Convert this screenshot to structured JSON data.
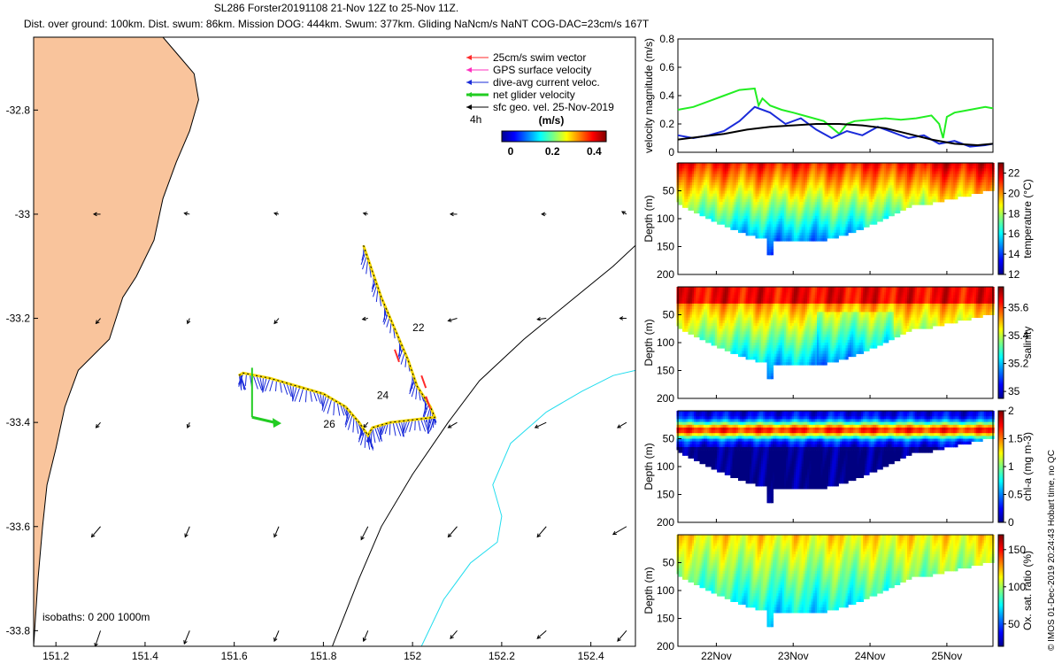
{
  "title_line1": "SL286 Forster20191108 21-Nov 12Z to 25-Nov 11Z.",
  "title_line2": "Dist. over ground: 100km. Dist. swum: 86km. Mission DOG: 444km. Swum: 377km. Gliding NaNcm/s NaNT COG-DAC=23cm/s 167T",
  "side_label": "© IMOS 01-Dec-2019 20:24:43 Hobart time, no QC",
  "colors": {
    "land": "#f9c49c",
    "sea": "#ffffff",
    "iso200": "#000000",
    "iso1000": "#22ddee",
    "track": "#f5d800",
    "dac": "#1a2bd9",
    "net": "#22cc22",
    "gps": "#ff2fbf",
    "swim": "#ff2a2a"
  },
  "map": {
    "xlim": [
      151.15,
      152.5
    ],
    "ylim": [
      -33.83,
      -32.66
    ],
    "xticks": [
      151.2,
      151.4,
      151.6,
      151.8,
      152,
      152.2,
      152.4
    ],
    "xtick_labels": [
      "151.2",
      "151.4",
      "151.6",
      "151.8",
      "152",
      "152.2",
      "152.4"
    ],
    "yticks": [
      -32.8,
      -33,
      -33.2,
      -33.4,
      -33.6,
      -33.8
    ],
    "ytick_labels": [
      "-32.8",
      "-33",
      "-33.2",
      "-33.4",
      "-33.6",
      "-33.8"
    ],
    "legend": [
      {
        "label": "25cm/s swim vector",
        "color": "#ff2a2a",
        "width": 1
      },
      {
        "label": "GPS surface velocity",
        "color": "#ff2fbf",
        "width": 1
      },
      {
        "label": "dive-avg current veloc.",
        "color": "#1a2bd9",
        "width": 1
      },
      {
        "label": "net glider velocity",
        "color": "#22cc22",
        "width": 3
      },
      {
        "label": "sfc geo. vel. 25-Nov-2019",
        "color": "#000000",
        "width": 1
      }
    ],
    "legend_time_label": "4h",
    "colorbar": {
      "title": "(m/s)",
      "range": [
        0,
        0.5
      ],
      "ticks": [
        0,
        0.2,
        0.4
      ],
      "tick_labels": [
        "0",
        "0.2",
        "0.4"
      ]
    },
    "isobaths_label": "isobaths: 0   200  1000m",
    "track_day_labels": [
      {
        "text": "22",
        "lon": 152.0,
        "lat": -33.225
      },
      {
        "text": "24",
        "lon": 151.92,
        "lat": -33.355
      },
      {
        "text": "26",
        "lon": 151.8,
        "lat": -33.41
      }
    ],
    "track": [
      [
        151.89,
        -33.06
      ],
      [
        151.91,
        -33.11
      ],
      [
        151.93,
        -33.16
      ],
      [
        151.96,
        -33.22
      ],
      [
        151.99,
        -33.28
      ],
      [
        152.01,
        -33.33
      ],
      [
        152.04,
        -33.37
      ],
      [
        152.05,
        -33.39
      ],
      [
        152.0,
        -33.395
      ],
      [
        151.95,
        -33.4
      ],
      [
        151.91,
        -33.41
      ],
      [
        151.9,
        -33.425
      ],
      [
        151.88,
        -33.4
      ],
      [
        151.85,
        -33.37
      ],
      [
        151.8,
        -33.345
      ],
      [
        151.74,
        -33.33
      ],
      [
        151.68,
        -33.315
      ],
      [
        151.62,
        -33.305
      ],
      [
        151.61,
        -33.31
      ]
    ],
    "net_velocity": {
      "lon0": 151.64,
      "lat0": -33.39,
      "lon1": 151.69,
      "lat1": -33.4
    },
    "geostrophic_velocity": [
      [
        151.3,
        -33.0,
        -0.015,
        0.0
      ],
      [
        151.5,
        -33.0,
        -0.012,
        0.002
      ],
      [
        151.7,
        -33.0,
        -0.01,
        0.002
      ],
      [
        151.9,
        -33.0,
        -0.01,
        0.002
      ],
      [
        152.1,
        -33.0,
        -0.015,
        0.0
      ],
      [
        152.3,
        -33.0,
        -0.01,
        0.0
      ],
      [
        152.48,
        -33.0,
        -0.01,
        0.005
      ],
      [
        151.3,
        -33.2,
        -0.01,
        -0.01
      ],
      [
        151.5,
        -33.2,
        -0.005,
        -0.01
      ],
      [
        151.7,
        -33.2,
        -0.01,
        -0.01
      ],
      [
        151.9,
        -33.2,
        -0.012,
        -0.002
      ],
      [
        152.1,
        -33.2,
        -0.02,
        -0.005
      ],
      [
        152.3,
        -33.2,
        -0.02,
        -0.002
      ],
      [
        152.48,
        -33.2,
        -0.015,
        0.0
      ],
      [
        151.3,
        -33.4,
        -0.01,
        -0.01
      ],
      [
        151.5,
        -33.4,
        -0.005,
        -0.01
      ],
      [
        151.7,
        -33.4,
        0.0,
        0.0
      ],
      [
        151.9,
        -33.4,
        -0.01,
        -0.01
      ],
      [
        152.1,
        -33.4,
        -0.02,
        -0.01
      ],
      [
        152.3,
        -33.4,
        -0.025,
        -0.01
      ],
      [
        152.48,
        -33.4,
        -0.02,
        -0.01
      ],
      [
        151.3,
        -33.6,
        -0.02,
        -0.02
      ],
      [
        151.5,
        -33.6,
        -0.01,
        -0.02
      ],
      [
        151.7,
        -33.6,
        -0.01,
        -0.02
      ],
      [
        151.9,
        -33.6,
        -0.015,
        -0.025
      ],
      [
        152.1,
        -33.6,
        -0.02,
        -0.02
      ],
      [
        152.3,
        -33.6,
        -0.02,
        -0.02
      ],
      [
        152.48,
        -33.6,
        -0.03,
        -0.015
      ],
      [
        151.3,
        -33.8,
        -0.012,
        -0.03
      ],
      [
        151.5,
        -33.8,
        -0.012,
        -0.025
      ],
      [
        151.7,
        -33.8,
        -0.01,
        -0.02
      ],
      [
        151.9,
        -33.8,
        -0.01,
        -0.02
      ],
      [
        152.1,
        -33.8,
        -0.015,
        -0.015
      ],
      [
        152.3,
        -33.8,
        -0.02,
        -0.015
      ],
      [
        152.48,
        -33.8,
        -0.02,
        -0.02
      ]
    ],
    "coast": [
      [
        151.15,
        -33.83
      ],
      [
        151.15,
        -32.66
      ],
      [
        151.44,
        -32.66
      ],
      [
        151.48,
        -32.7
      ],
      [
        151.51,
        -32.73
      ],
      [
        151.52,
        -32.78
      ],
      [
        151.5,
        -32.84
      ],
      [
        151.47,
        -32.9
      ],
      [
        151.44,
        -32.97
      ],
      [
        151.42,
        -33.05
      ],
      [
        151.38,
        -33.12
      ],
      [
        151.35,
        -33.16
      ],
      [
        151.32,
        -33.24
      ],
      [
        151.25,
        -33.3
      ],
      [
        151.22,
        -33.37
      ],
      [
        151.2,
        -33.45
      ],
      [
        151.18,
        -33.52
      ],
      [
        151.17,
        -33.6
      ],
      [
        151.16,
        -33.7
      ],
      [
        151.15,
        -33.83
      ]
    ],
    "iso200": [
      [
        151.82,
        -33.83
      ],
      [
        151.88,
        -33.7
      ],
      [
        151.93,
        -33.6
      ],
      [
        152.0,
        -33.5
      ],
      [
        152.08,
        -33.4
      ],
      [
        152.15,
        -33.32
      ],
      [
        152.25,
        -33.24
      ],
      [
        152.35,
        -33.17
      ],
      [
        152.45,
        -33.1
      ],
      [
        152.5,
        -33.06
      ]
    ],
    "iso1000": [
      [
        152.02,
        -33.83
      ],
      [
        152.07,
        -33.74
      ],
      [
        152.13,
        -33.67
      ],
      [
        152.19,
        -33.63
      ],
      [
        152.2,
        -33.58
      ],
      [
        152.18,
        -33.52
      ],
      [
        152.22,
        -33.44
      ],
      [
        152.3,
        -33.38
      ],
      [
        152.38,
        -33.34
      ],
      [
        152.45,
        -33.31
      ],
      [
        152.5,
        -33.3
      ]
    ]
  },
  "time_axis": {
    "range": [
      0,
      4.1
    ],
    "ticks": [
      0.5,
      1.5,
      2.5,
      3.5
    ],
    "tick_labels": [
      "22Nov",
      "23Nov",
      "24Nov",
      "25Nov"
    ]
  },
  "velocity_panel": {
    "ylabel": "velocity magnitude (m/s)",
    "ylim": [
      0,
      0.8
    ],
    "yticks": [
      0,
      0.2,
      0.4,
      0.6,
      0.8
    ],
    "ytick_labels": [
      "0",
      "0.2",
      "0.4",
      "0.6",
      "0.8"
    ],
    "series": [
      {
        "name": "net glider velocity",
        "color": "#22ee22",
        "t": [
          0.0,
          0.2,
          0.4,
          0.6,
          0.8,
          1.0,
          1.05,
          1.1,
          1.2,
          1.35,
          1.5,
          1.7,
          1.9,
          2.1,
          2.2,
          2.3,
          2.5,
          2.7,
          2.9,
          3.1,
          3.3,
          3.4,
          3.45,
          3.5,
          3.6,
          3.8,
          4.0,
          4.1
        ],
        "values": [
          0.3,
          0.32,
          0.36,
          0.4,
          0.44,
          0.45,
          0.33,
          0.38,
          0.33,
          0.3,
          0.28,
          0.25,
          0.22,
          0.13,
          0.2,
          0.22,
          0.23,
          0.24,
          0.23,
          0.24,
          0.26,
          0.2,
          0.1,
          0.25,
          0.28,
          0.3,
          0.32,
          0.31
        ]
      },
      {
        "name": "dive-avg current veloc.",
        "color": "#1a2bd9",
        "t": [
          0.0,
          0.2,
          0.4,
          0.6,
          0.8,
          1.0,
          1.2,
          1.4,
          1.6,
          1.8,
          2.0,
          2.2,
          2.4,
          2.6,
          2.8,
          3.0,
          3.2,
          3.4,
          3.6,
          3.8,
          4.0,
          4.1
        ],
        "values": [
          0.12,
          0.1,
          0.12,
          0.15,
          0.22,
          0.32,
          0.28,
          0.2,
          0.24,
          0.16,
          0.1,
          0.15,
          0.12,
          0.18,
          0.14,
          0.1,
          0.12,
          0.06,
          0.08,
          0.04,
          0.05,
          0.06
        ]
      },
      {
        "name": "sfc geo. vel.",
        "color": "#000000",
        "t": [
          0.0,
          0.3,
          0.6,
          0.9,
          1.2,
          1.5,
          1.8,
          2.1,
          2.4,
          2.7,
          3.0,
          3.3,
          3.6,
          3.9,
          4.1
        ],
        "values": [
          0.09,
          0.11,
          0.13,
          0.16,
          0.18,
          0.19,
          0.2,
          0.2,
          0.19,
          0.17,
          0.13,
          0.09,
          0.06,
          0.05,
          0.06
        ]
      }
    ]
  },
  "section_panels": [
    {
      "ylabel": "Depth (m)",
      "cbar_label": "temperature (°C)",
      "cmap": "jet",
      "clim": [
        12,
        23
      ],
      "cbar_ticks": [
        12,
        14,
        16,
        18,
        20,
        22
      ],
      "cbar_tick_labels": [
        "12",
        "14",
        "16",
        "18",
        "20",
        "22"
      ],
      "ylim": [
        0,
        200
      ],
      "yticks": [
        50,
        100,
        150,
        200
      ],
      "ytick_labels": [
        "50",
        "100",
        "150",
        "200"
      ]
    },
    {
      "ylabel": "Depth (m)",
      "cbar_label": "salinity",
      "cmap": "jet",
      "clim": [
        34.95,
        35.75
      ],
      "cbar_ticks": [
        35,
        35.2,
        35.4,
        35.6
      ],
      "cbar_tick_labels": [
        "35",
        "35.2",
        "35.4",
        "35.6"
      ],
      "ylim": [
        0,
        200
      ],
      "yticks": [
        50,
        100,
        150,
        200
      ],
      "ytick_labels": [
        "50",
        "100",
        "150",
        "200"
      ]
    },
    {
      "ylabel": "Depth (m)",
      "cbar_label": "chl-a (mg m-3)",
      "cmap": "jet",
      "clim": [
        0,
        2
      ],
      "cbar_ticks": [
        0,
        0.5,
        1,
        1.5,
        2
      ],
      "cbar_tick_labels": [
        "0",
        "0.5",
        "1",
        "1.5",
        "2"
      ],
      "ylim": [
        0,
        200
      ],
      "yticks": [
        50,
        100,
        150,
        200
      ],
      "ytick_labels": [
        "50",
        "100",
        "150",
        "200"
      ]
    },
    {
      "ylabel": "Depth (m)",
      "cbar_label": "Ox. sat. ratio (%)",
      "cmap": "jet",
      "clim": [
        20,
        170
      ],
      "cbar_ticks": [
        50,
        100,
        150
      ],
      "cbar_tick_labels": [
        "50",
        "100",
        "150"
      ],
      "ylim": [
        0,
        200
      ],
      "yticks": [
        50,
        100,
        150,
        200
      ],
      "ytick_labels": [
        "50",
        "100",
        "150",
        "200"
      ]
    }
  ],
  "chart_data": [
    {
      "type": "scatter",
      "title": "SL286 Forster20191108 21-Nov 12Z to 25-Nov 11Z.",
      "xlabel": "",
      "ylabel": "",
      "xlim": [
        151.15,
        152.5
      ],
      "ylim": [
        -33.83,
        -32.66
      ],
      "series": [
        {
          "name": "glider track",
          "x": [
            151.89,
            151.96,
            152.05,
            151.9,
            151.74,
            151.61
          ],
          "y": [
            -33.06,
            -33.22,
            -33.39,
            -33.425,
            -33.33,
            -33.31
          ]
        }
      ]
    },
    {
      "type": "line",
      "title": "",
      "xlabel": "",
      "ylabel": "velocity magnitude (m/s)",
      "categories": [
        "22Nov",
        "23Nov",
        "24Nov",
        "25Nov"
      ],
      "ylim": [
        0,
        0.8
      ],
      "series": [
        {
          "name": "net glider velocity",
          "values": [
            0.42,
            0.28,
            0.2,
            0.28
          ]
        },
        {
          "name": "dive-avg current veloc.",
          "values": [
            0.2,
            0.2,
            0.14,
            0.06
          ]
        },
        {
          "name": "sfc geo. vel.",
          "values": [
            0.14,
            0.2,
            0.15,
            0.05
          ]
        }
      ]
    },
    {
      "type": "heatmap",
      "title": "",
      "xlabel": "",
      "ylabel": "Depth (m)",
      "zlabel": "temperature (°C)",
      "zlim": [
        12,
        23
      ],
      "categories": [
        "22Nov",
        "23Nov",
        "24Nov",
        "25Nov"
      ],
      "surface": [
        21,
        21,
        22,
        22
      ],
      "at_150m": [
        13,
        13,
        14,
        15
      ]
    },
    {
      "type": "heatmap",
      "title": "",
      "xlabel": "",
      "ylabel": "Depth (m)",
      "zlabel": "salinity",
      "zlim": [
        34.95,
        35.75
      ],
      "categories": [
        "22Nov",
        "23Nov",
        "24Nov",
        "25Nov"
      ],
      "surface": [
        35.6,
        35.6,
        35.55,
        35.7
      ],
      "at_150m": [
        35.1,
        35.1,
        35.2,
        35.3
      ]
    },
    {
      "type": "heatmap",
      "title": "",
      "xlabel": "",
      "ylabel": "Depth (m)",
      "zlabel": "chl-a (mg m-3)",
      "zlim": [
        0,
        2
      ],
      "categories": [
        "22Nov",
        "23Nov",
        "24Nov",
        "25Nov"
      ],
      "max_at_30m": [
        1.8,
        1.6,
        1.9,
        1.8
      ],
      "at_150m": [
        0.05,
        0.05,
        0.05,
        0.05
      ]
    },
    {
      "type": "heatmap",
      "title": "",
      "xlabel": "",
      "ylabel": "Depth (m)",
      "zlabel": "Ox. sat. ratio (%)",
      "zlim": [
        20,
        170
      ],
      "categories": [
        "22Nov",
        "23Nov",
        "24Nov",
        "25Nov"
      ],
      "surface": [
        110,
        110,
        110,
        115
      ],
      "at_150m": [
        75,
        75,
        80,
        80
      ]
    }
  ]
}
